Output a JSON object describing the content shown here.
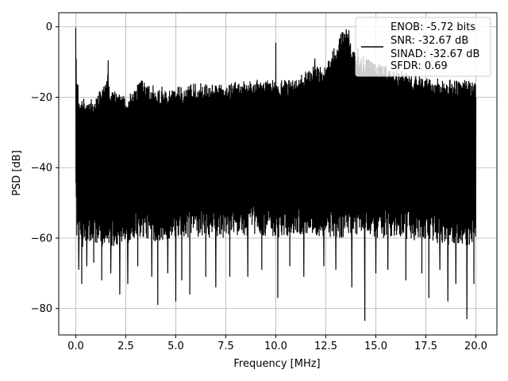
{
  "chart_data": {
    "type": "line",
    "title": "",
    "xlabel": "Frequency [MHz]",
    "ylabel": "PSD [dB]",
    "xlim": [
      -0.85,
      21.05
    ],
    "ylim": [
      -87.5,
      4
    ],
    "x_ticks": [
      {
        "value": 0.0,
        "label": "0.0"
      },
      {
        "value": 2.5,
        "label": "2.5"
      },
      {
        "value": 5.0,
        "label": "5.0"
      },
      {
        "value": 7.5,
        "label": "7.5"
      },
      {
        "value": 10.0,
        "label": "10.0"
      },
      {
        "value": 12.5,
        "label": "12.5"
      },
      {
        "value": 15.0,
        "label": "15.0"
      },
      {
        "value": 17.5,
        "label": "17.5"
      },
      {
        "value": 20.0,
        "label": "20.0"
      }
    ],
    "y_ticks": [
      {
        "value": 0,
        "label": "0"
      },
      {
        "value": -20,
        "label": "−20"
      },
      {
        "value": -40,
        "label": "−40"
      },
      {
        "value": -60,
        "label": "−60"
      },
      {
        "value": -80,
        "label": "−80"
      }
    ],
    "grid": true,
    "legend": {
      "placement": "upper-right",
      "entries": [
        "ENOB: -5.72 bits",
        "SNR: -32.67 dB",
        "SINAD: -32.67 dB",
        "SFDR: 0.69"
      ]
    },
    "series": [
      {
        "color": "#000000",
        "envelope": {
          "x": [
            0.0,
            0.05,
            0.2,
            0.5,
            1.0,
            1.6,
            1.7,
            2.5,
            3.0,
            3.2,
            4.0,
            5.0,
            6.0,
            7.5,
            9.0,
            10.0,
            11.0,
            11.8,
            12.5,
            13.3,
            13.5,
            14.0,
            15.0,
            16.0,
            17.5,
            18.5,
            19.5,
            20.0
          ],
          "upper": [
            -1.0,
            -13,
            -21,
            -20,
            -20,
            -13,
            -18,
            -19,
            -17,
            -14,
            -17,
            -17,
            -16,
            -16,
            -15,
            -15,
            -15,
            -11,
            -11,
            -1,
            -1,
            -7,
            -10,
            -12,
            -14,
            -15,
            -15,
            -16
          ],
          "lower": [
            -40,
            -60,
            -63,
            -62,
            -62,
            -63,
            -62,
            -63,
            -60,
            -60,
            -61,
            -60,
            -60,
            -60,
            -59,
            -60,
            -59,
            -59,
            -60,
            -60,
            -60,
            -59,
            -60,
            -60,
            -61,
            -62,
            -62,
            -62
          ]
        },
        "peaks": [
          {
            "x": 0.0,
            "y": -0.2
          },
          {
            "x": 1.62,
            "y": -9.5
          },
          {
            "x": 10.0,
            "y": -4.5
          },
          {
            "x": 11.95,
            "y": -9.0
          },
          {
            "x": 13.52,
            "y": -0.7
          },
          {
            "x": 13.65,
            "y": -1.0
          },
          {
            "x": 14.1,
            "y": -6.0
          }
        ],
        "dips": [
          {
            "x": 0.15,
            "y": -69
          },
          {
            "x": 0.3,
            "y": -73
          },
          {
            "x": 0.55,
            "y": -68
          },
          {
            "x": 0.9,
            "y": -67
          },
          {
            "x": 1.3,
            "y": -72
          },
          {
            "x": 1.75,
            "y": -70
          },
          {
            "x": 2.2,
            "y": -76
          },
          {
            "x": 2.6,
            "y": -73
          },
          {
            "x": 3.1,
            "y": -68
          },
          {
            "x": 3.8,
            "y": -71
          },
          {
            "x": 4.1,
            "y": -79
          },
          {
            "x": 4.6,
            "y": -70
          },
          {
            "x": 5.0,
            "y": -78
          },
          {
            "x": 5.3,
            "y": -72
          },
          {
            "x": 5.7,
            "y": -76
          },
          {
            "x": 6.5,
            "y": -71
          },
          {
            "x": 7.0,
            "y": -74
          },
          {
            "x": 7.7,
            "y": -71
          },
          {
            "x": 8.6,
            "y": -71
          },
          {
            "x": 9.3,
            "y": -69
          },
          {
            "x": 10.1,
            "y": -77
          },
          {
            "x": 10.7,
            "y": -68
          },
          {
            "x": 11.4,
            "y": -71
          },
          {
            "x": 12.4,
            "y": -68
          },
          {
            "x": 13.0,
            "y": -69
          },
          {
            "x": 13.8,
            "y": -74
          },
          {
            "x": 14.45,
            "y": -83.5
          },
          {
            "x": 15.0,
            "y": -70
          },
          {
            "x": 15.6,
            "y": -69
          },
          {
            "x": 16.5,
            "y": -72
          },
          {
            "x": 17.3,
            "y": -70
          },
          {
            "x": 17.65,
            "y": -77
          },
          {
            "x": 18.2,
            "y": -69
          },
          {
            "x": 18.6,
            "y": -78
          },
          {
            "x": 19.0,
            "y": -73
          },
          {
            "x": 19.55,
            "y": -83
          },
          {
            "x": 19.9,
            "y": -73
          }
        ]
      }
    ]
  }
}
